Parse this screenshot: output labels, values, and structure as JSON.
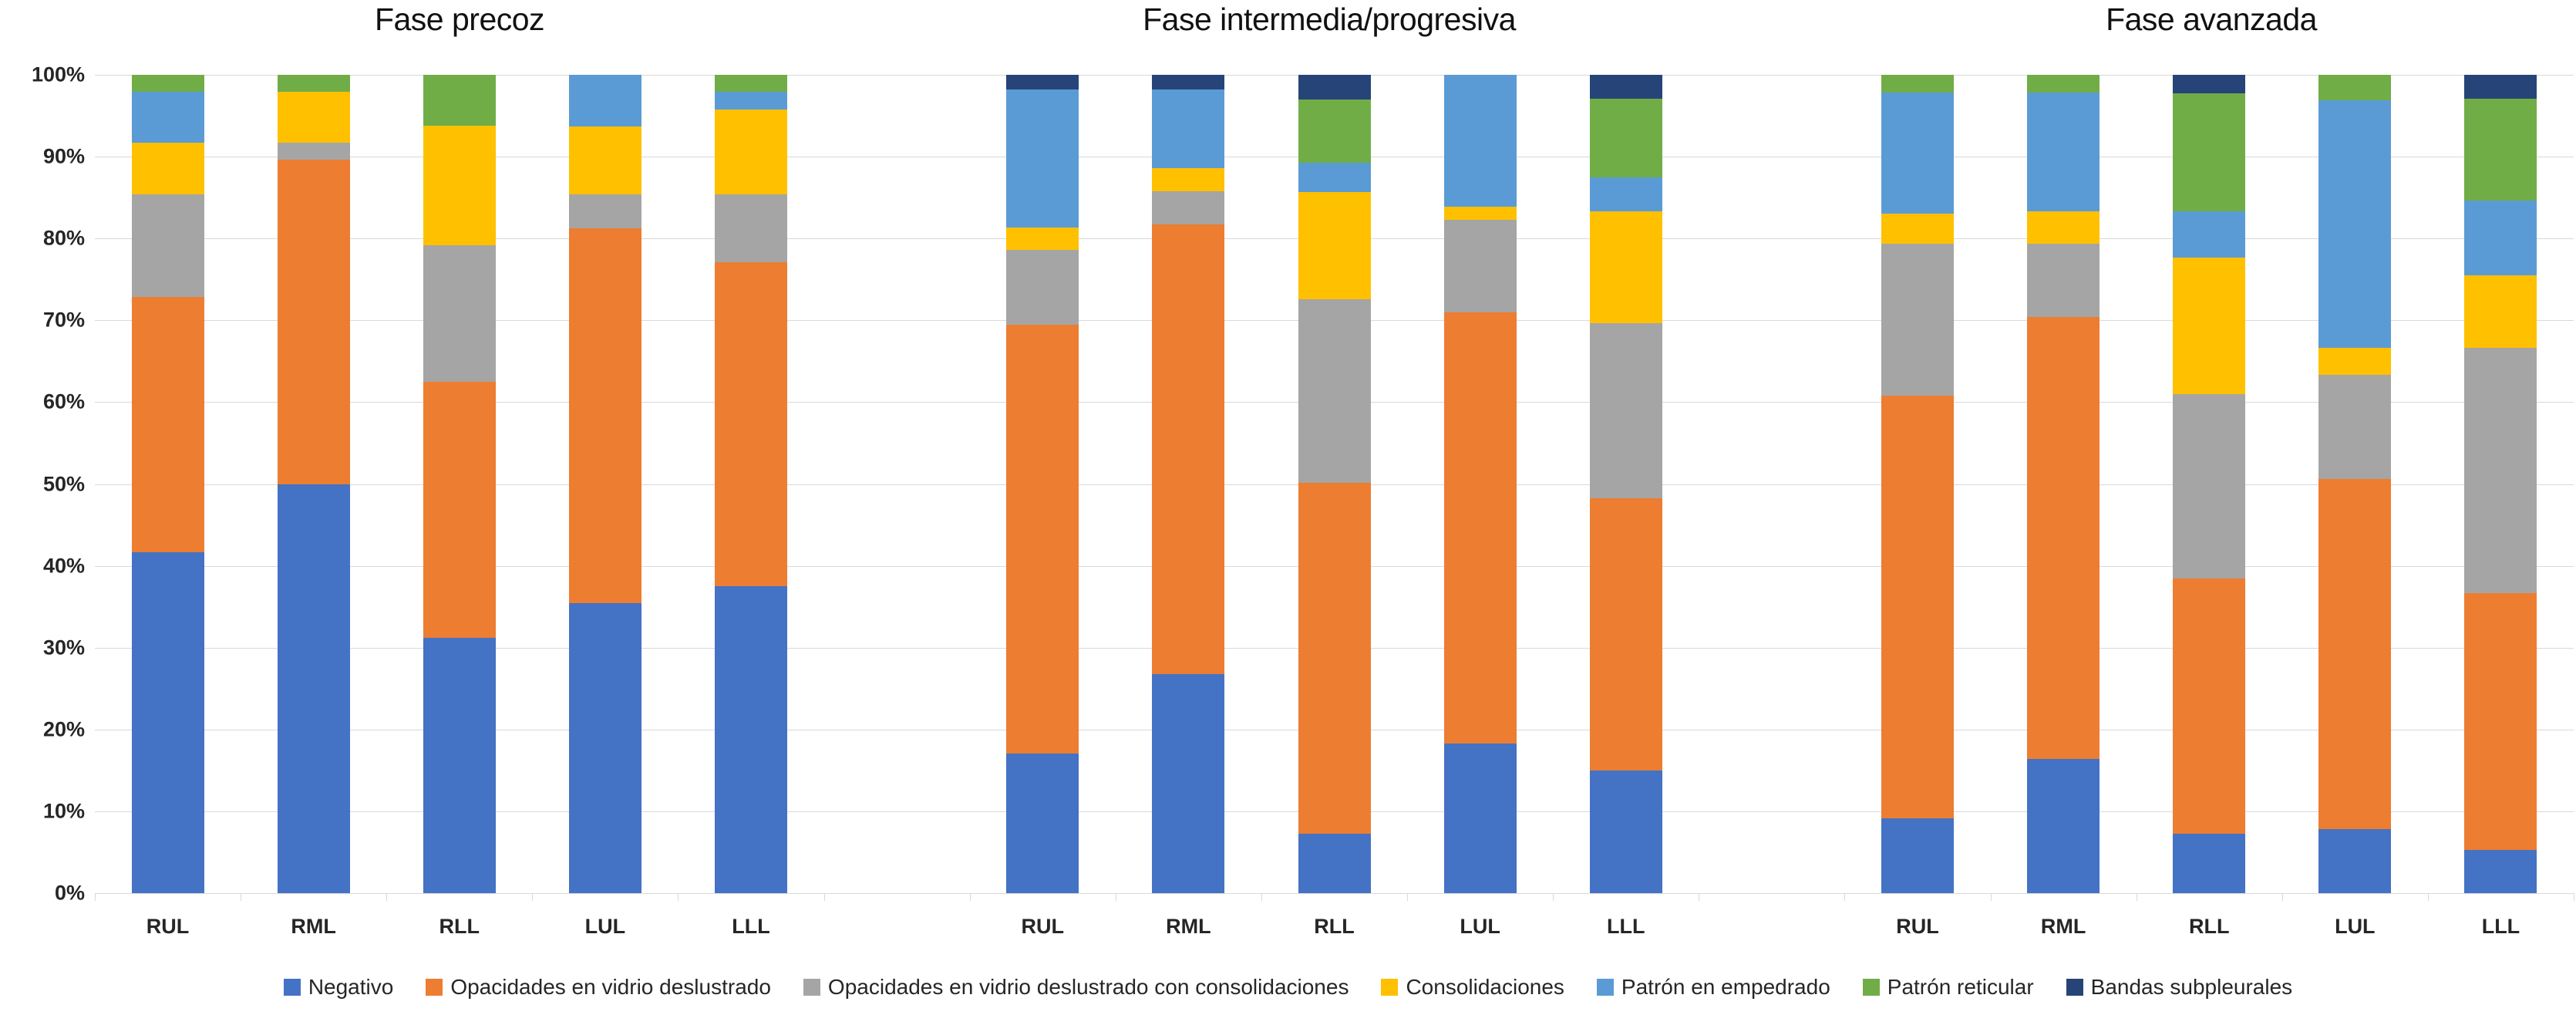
{
  "chart_data": {
    "type": "bar",
    "stacked": true,
    "unit": "percent",
    "ylim": [
      0,
      100
    ],
    "grid": true,
    "legend_position": "bottom",
    "y_ticks": [
      "0%",
      "10%",
      "20%",
      "30%",
      "40%",
      "50%",
      "60%",
      "70%",
      "80%",
      "90%",
      "100%"
    ],
    "categories": [
      "RUL",
      "RML",
      "RLL",
      "LUL",
      "LLL"
    ],
    "series": [
      {
        "key": "negativo",
        "label": "Negativo",
        "color": "#4472C4"
      },
      {
        "key": "opacidades-vidrio-deslustrado",
        "label": "Opacidades en vidrio deslustrado",
        "color": "#ED7D31"
      },
      {
        "key": "opacidades-vidrio-deslustrado-con-consolidaciones",
        "label": "Opacidades en vidrio deslustrado con consolidaciones",
        "color": "#A5A5A5"
      },
      {
        "key": "consolidaciones",
        "label": "Consolidaciones",
        "color": "#FFC000"
      },
      {
        "key": "patron-empedrado",
        "label": "Patrón en empedrado",
        "color": "#5B9BD5"
      },
      {
        "key": "patron-reticular",
        "label": "Patrón reticular",
        "color": "#70AD47"
      },
      {
        "key": "bandas-subpleurales",
        "label": "Bandas subpleurales",
        "color": "#264478"
      }
    ],
    "groups": [
      {
        "title": "Fase precoz",
        "bars": [
          {
            "category": "RUL",
            "values": [
              41.7,
              31.2,
              12.5,
              6.3,
              6.2,
              2.1,
              0
            ]
          },
          {
            "category": "RML",
            "values": [
              50.0,
              39.6,
              2.1,
              6.2,
              0,
              2.1,
              0
            ]
          },
          {
            "category": "RLL",
            "values": [
              31.2,
              31.3,
              16.7,
              14.6,
              0,
              6.2,
              0
            ]
          },
          {
            "category": "LUL",
            "values": [
              35.4,
              45.8,
              4.2,
              8.3,
              6.3,
              0,
              0
            ]
          },
          {
            "category": "LLL",
            "values": [
              37.5,
              39.6,
              8.3,
              10.4,
              2.1,
              2.1,
              0
            ]
          }
        ]
      },
      {
        "title": "Fase intermedia/progresiva",
        "bars": [
          {
            "category": "RUL",
            "values": [
              17.1,
              52.4,
              9.1,
              2.7,
              16.9,
              0,
              1.8
            ]
          },
          {
            "category": "RML",
            "values": [
              26.8,
              54.9,
              4.1,
              2.8,
              9.6,
              0,
              1.8
            ]
          },
          {
            "category": "RLL",
            "values": [
              7.3,
              42.8,
              22.5,
              13.1,
              3.6,
              7.7,
              3.0
            ]
          },
          {
            "category": "LUL",
            "values": [
              18.3,
              52.7,
              11.3,
              1.6,
              16.1,
              0,
              0
            ]
          },
          {
            "category": "LLL",
            "values": [
              15.0,
              33.3,
              21.4,
              13.6,
              4.2,
              9.6,
              2.9
            ]
          }
        ]
      },
      {
        "title": "Fase avanzada",
        "bars": [
          {
            "category": "RUL",
            "values": [
              9.1,
              51.7,
              18.6,
              3.6,
              14.8,
              2.2,
              0
            ]
          },
          {
            "category": "RML",
            "values": [
              16.4,
              54.0,
              9.0,
              3.9,
              14.5,
              2.2,
              0
            ]
          },
          {
            "category": "RLL",
            "values": [
              7.3,
              31.2,
              22.5,
              16.7,
              5.6,
              14.4,
              2.3
            ]
          },
          {
            "category": "LUL",
            "values": [
              7.8,
              42.8,
              12.7,
              3.3,
              30.3,
              3.1,
              0
            ]
          },
          {
            "category": "LLL",
            "values": [
              5.3,
              31.4,
              29.9,
              8.9,
              9.1,
              12.5,
              2.9
            ]
          }
        ]
      }
    ]
  },
  "colors": {
    "gridline": "#d9d9d9",
    "axis_text": "#262626",
    "title_text": "#111111",
    "background": "#ffffff"
  }
}
